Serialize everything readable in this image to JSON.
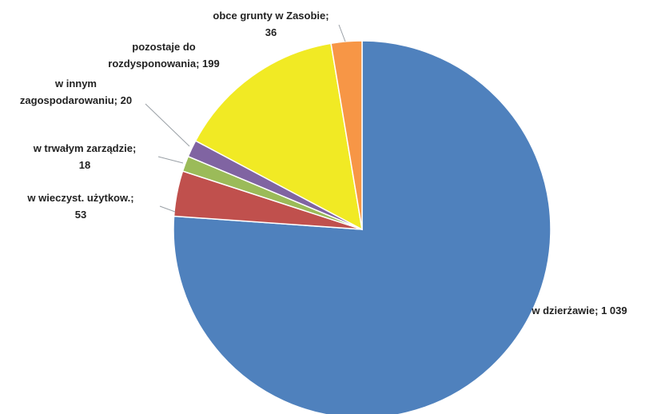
{
  "chart_data": {
    "type": "pie",
    "title": "",
    "series": [
      {
        "values": [
          1039,
          53,
          18,
          20,
          199,
          36
        ],
        "labels": [
          "w dzierżawie; 1 039",
          "w wieczyst. użytkow.; 53",
          "w trwałym zarządzie; 18",
          "w innym zagospodarowaniu; 20",
          "pozostaje do rozdysponowania; 199",
          "obce grunty w Zasobie; 36"
        ],
        "colors": [
          "#4f81bd",
          "#c0504d",
          "#9bbb59",
          "#8064a2",
          "#f1ea24",
          "#f79646"
        ]
      }
    ],
    "legend": "none",
    "start_angle_deg": 0,
    "direction": "clockwise"
  }
}
